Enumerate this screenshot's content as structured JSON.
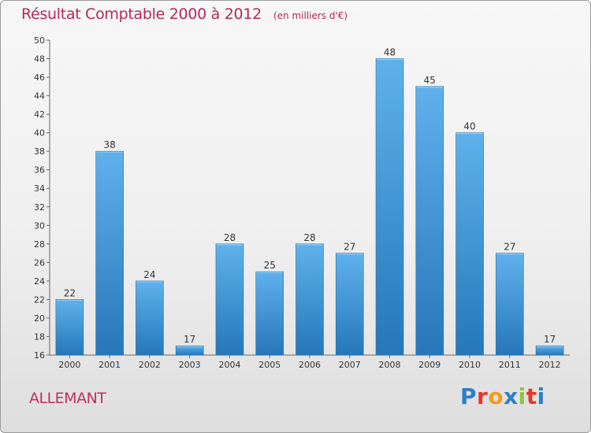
{
  "title": "Résultat Comptable 2000 à 2012",
  "subtitle": "(en milliers d'€)",
  "commune": "ALLEMANT",
  "logo": {
    "letters": [
      "P",
      "r",
      "o",
      "x",
      "i",
      "t",
      "i"
    ],
    "colors": [
      "#2a7fc9",
      "#e8342a",
      "#f39a1e",
      "#2a7fc9",
      "#8bc53f",
      "#e8342a",
      "#2a7fc9"
    ]
  },
  "colors": {
    "bar_light": "#5fb1ec",
    "bar_dark": "#2677b8",
    "accent": "#b5275e"
  },
  "chart_data": {
    "type": "bar",
    "title": "Résultat Comptable 2000 à 2012",
    "subtitle": "(en milliers d'€)",
    "categories": [
      "2000",
      "2001",
      "2002",
      "2003",
      "2004",
      "2005",
      "2006",
      "2007",
      "2008",
      "2009",
      "2010",
      "2011",
      "2012"
    ],
    "values": [
      22,
      38,
      24,
      17,
      28,
      25,
      28,
      27,
      48,
      45,
      40,
      27,
      17
    ],
    "ylim": [
      16,
      50
    ],
    "yticks": [
      16,
      18,
      20,
      22,
      24,
      26,
      28,
      30,
      32,
      34,
      36,
      38,
      40,
      42,
      44,
      46,
      48,
      50
    ],
    "xlabel": "",
    "ylabel": "",
    "grid": false
  }
}
